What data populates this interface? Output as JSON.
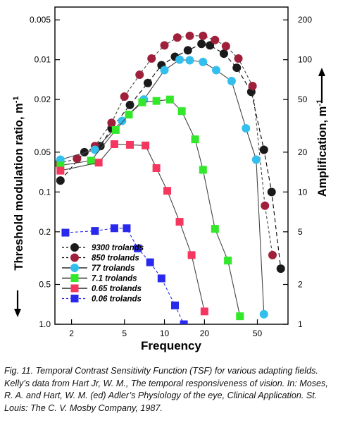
{
  "chart_data": {
    "type": "line",
    "xlabel": "Frequency",
    "ylabel_left": "Threshold modulation ratio, m",
    "ylabel_left_sup": "-1",
    "ylabel_right": "Amplification, m",
    "ylabel_right_sup": "-1",
    "x_scale": "log",
    "y_scale": "log",
    "xlim": [
      1.5,
      85
    ],
    "left_ylim": [
      1.0,
      0.004
    ],
    "x_ticks": [
      2,
      5,
      10,
      20,
      50
    ],
    "x_tick_labels": [
      "2",
      "5",
      "10",
      "20",
      "50"
    ],
    "left_ticks": [
      0.005,
      0.01,
      0.02,
      0.05,
      0.1,
      0.2,
      0.5,
      1.0
    ],
    "left_tick_labels": [
      "0.005",
      "0.01",
      "0.02",
      "0.05",
      "0.1",
      "0.2",
      "0.5",
      "1.0"
    ],
    "right_ticks": [
      200,
      100,
      50,
      20,
      10,
      5,
      2,
      1
    ],
    "right_tick_labels": [
      "200",
      "100",
      "50",
      "20",
      "10",
      "5",
      "2",
      "1"
    ],
    "legend_position": "bottom-left",
    "series": [
      {
        "name": "9300 trolands",
        "marker": "circle",
        "color": "#1a1a1a",
        "dash": "6,4",
        "x": [
          1.65,
          2.5,
          3.3,
          4.0,
          5.5,
          7.5,
          9.5,
          12.0,
          15.0,
          19.0,
          22.0,
          28.0,
          35.0,
          45.0,
          56.0,
          64.0,
          75.0
        ],
        "y": [
          0.082,
          0.05,
          0.045,
          0.033,
          0.022,
          0.015,
          0.011,
          0.0095,
          0.0085,
          0.0076,
          0.0078,
          0.009,
          0.0115,
          0.0175,
          0.048,
          0.1,
          0.38
        ]
      },
      {
        "name": "850 trolands",
        "marker": "circle",
        "color": "#a01f3a",
        "dash": "4,3",
        "x": [
          1.6,
          2.2,
          3.0,
          4.0,
          5.0,
          6.5,
          8.0,
          10.0,
          12.5,
          15.5,
          19.5,
          24.0,
          29.0,
          36.0,
          46.0,
          57.0,
          65.0
        ],
        "y": [
          0.061,
          0.056,
          0.045,
          0.03,
          0.019,
          0.013,
          0.0098,
          0.0078,
          0.0068,
          0.0066,
          0.0066,
          0.0071,
          0.0079,
          0.0098,
          0.0158,
          0.127,
          0.3
        ]
      },
      {
        "name": "77 trolands",
        "marker": "circle",
        "color": "#33bfee",
        "dash": "none",
        "x": [
          1.65,
          3.0,
          4.8,
          7.0,
          10.0,
          13.0,
          15.5,
          19.5,
          24.5,
          32.0,
          41.0,
          49.0,
          56.0
        ],
        "y": [
          0.057,
          0.048,
          0.029,
          0.02,
          0.012,
          0.01,
          0.0101,
          0.0104,
          0.012,
          0.0145,
          0.033,
          0.057,
          0.84
        ]
      },
      {
        "name": "7.1 trolands",
        "marker": "square",
        "color": "#33e82a",
        "dash": "none",
        "x": [
          1.65,
          2.8,
          4.3,
          5.4,
          6.8,
          8.7,
          11.0,
          13.5,
          17.0,
          19.5,
          24.0,
          30.0,
          37.0
        ],
        "y": [
          0.063,
          0.058,
          0.034,
          0.026,
          0.021,
          0.0205,
          0.02,
          0.0245,
          0.04,
          0.068,
          0.19,
          0.33,
          0.87
        ]
      },
      {
        "name": "0.65 trolands",
        "marker": "square",
        "color": "#f5375f",
        "dash": "none",
        "x": [
          1.65,
          3.2,
          4.2,
          5.5,
          7.2,
          8.7,
          10.5,
          13.0,
          16.0,
          20.0
        ],
        "y": [
          0.069,
          0.06,
          0.0435,
          0.044,
          0.0445,
          0.066,
          0.098,
          0.168,
          0.3,
          0.8
        ]
      },
      {
        "name": "0.06 trolands",
        "marker": "square",
        "color": "#2929ee",
        "dash": "4,3",
        "x": [
          1.8,
          3.0,
          4.2,
          5.2,
          6.3,
          7.8,
          9.5,
          12.0,
          14.0
        ],
        "y": [
          0.203,
          0.197,
          0.188,
          0.188,
          0.267,
          0.34,
          0.45,
          0.72,
          1.0
        ]
      }
    ]
  },
  "caption": "Fig. 11. Temporal Contrast Sensitivity Function (TSF) for various adapting fields. Kelly’s data from Hart Jr, W. M., The temporal responsiveness of vision. In: Moses, R. A. and Hart, W. M. (ed) Adler’s Physiology of the eye, Clinical Application. St. Louis: The C. V. Mosby Company, 1987."
}
